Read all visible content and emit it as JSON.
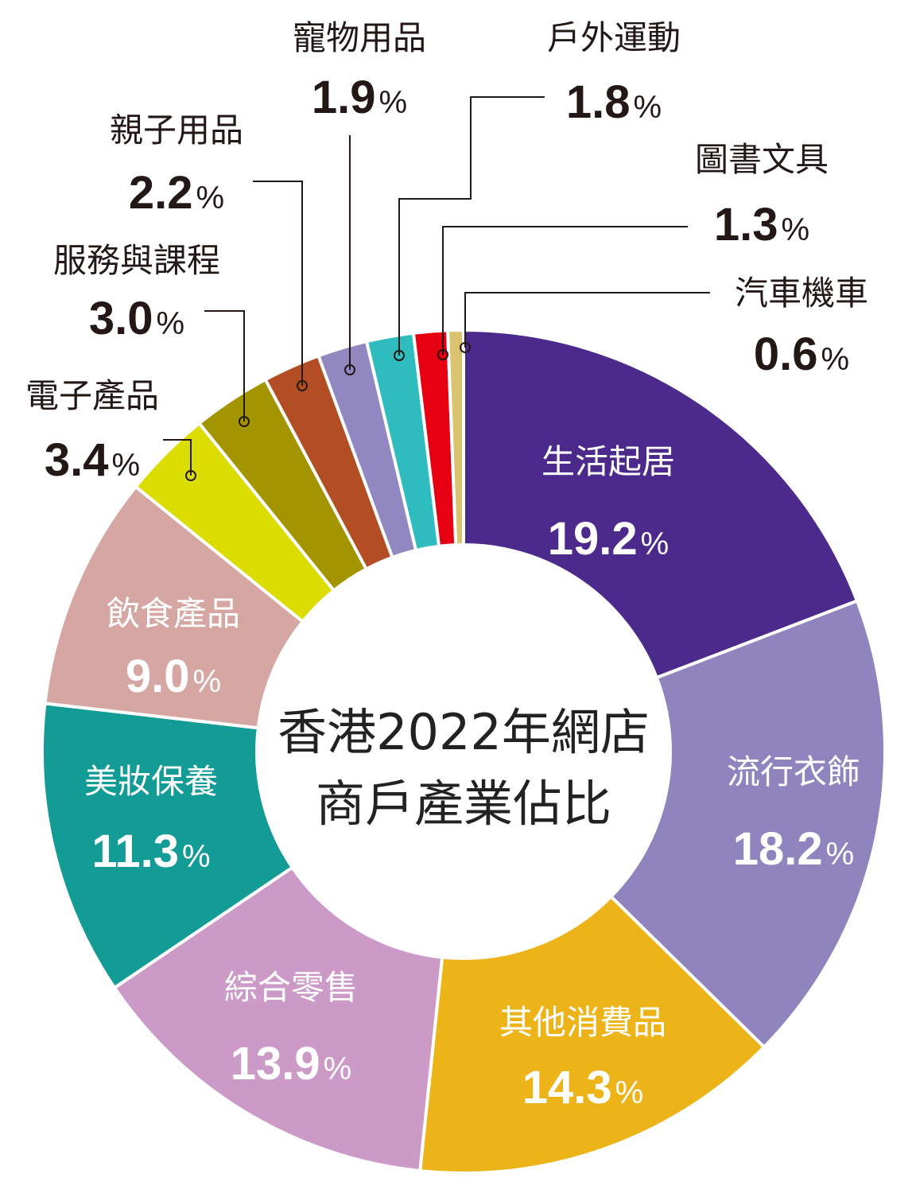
{
  "chart_data": {
    "type": "pie",
    "title": "香港2022年網店商戶產業佔比",
    "title_lines": [
      "香港2022年網店",
      "商戶產業佔比"
    ],
    "unit": "%",
    "slices": [
      {
        "label": "生活起居",
        "value": 19.2,
        "value_text": "19.2",
        "color": "#4b2a8b"
      },
      {
        "label": "流行衣飾",
        "value": 18.2,
        "value_text": "18.2",
        "color": "#8f84be"
      },
      {
        "label": "其他消費品",
        "value": 14.3,
        "value_text": "14.3",
        "color": "#ecb419"
      },
      {
        "label": "綜合零售",
        "value": 13.9,
        "value_text": "13.9",
        "color": "#cc9ac7"
      },
      {
        "label": "美妝保養",
        "value": 11.3,
        "value_text": "11.3",
        "color": "#139b95"
      },
      {
        "label": "飲食產品",
        "value": 9.0,
        "value_text": "9.0",
        "color": "#d6a7a2"
      },
      {
        "label": "電子產品",
        "value": 3.4,
        "value_text": "3.4",
        "color": "#dbdc00"
      },
      {
        "label": "服務與課程",
        "value": 3.0,
        "value_text": "3.0",
        "color": "#a39500"
      },
      {
        "label": "親子用品",
        "value": 2.2,
        "value_text": "2.2",
        "color": "#b24d24"
      },
      {
        "label": "寵物用品",
        "value": 1.9,
        "value_text": "1.9",
        "color": "#9188c2"
      },
      {
        "label": "戶外運動",
        "value": 1.8,
        "value_text": "1.8",
        "color": "#2fbcbf"
      },
      {
        "label": "圖書文具",
        "value": 1.3,
        "value_text": "1.3",
        "color": "#e60012"
      },
      {
        "label": "汽車機車",
        "value": 0.6,
        "value_text": "0.6",
        "color": "#d9c36f"
      }
    ]
  }
}
